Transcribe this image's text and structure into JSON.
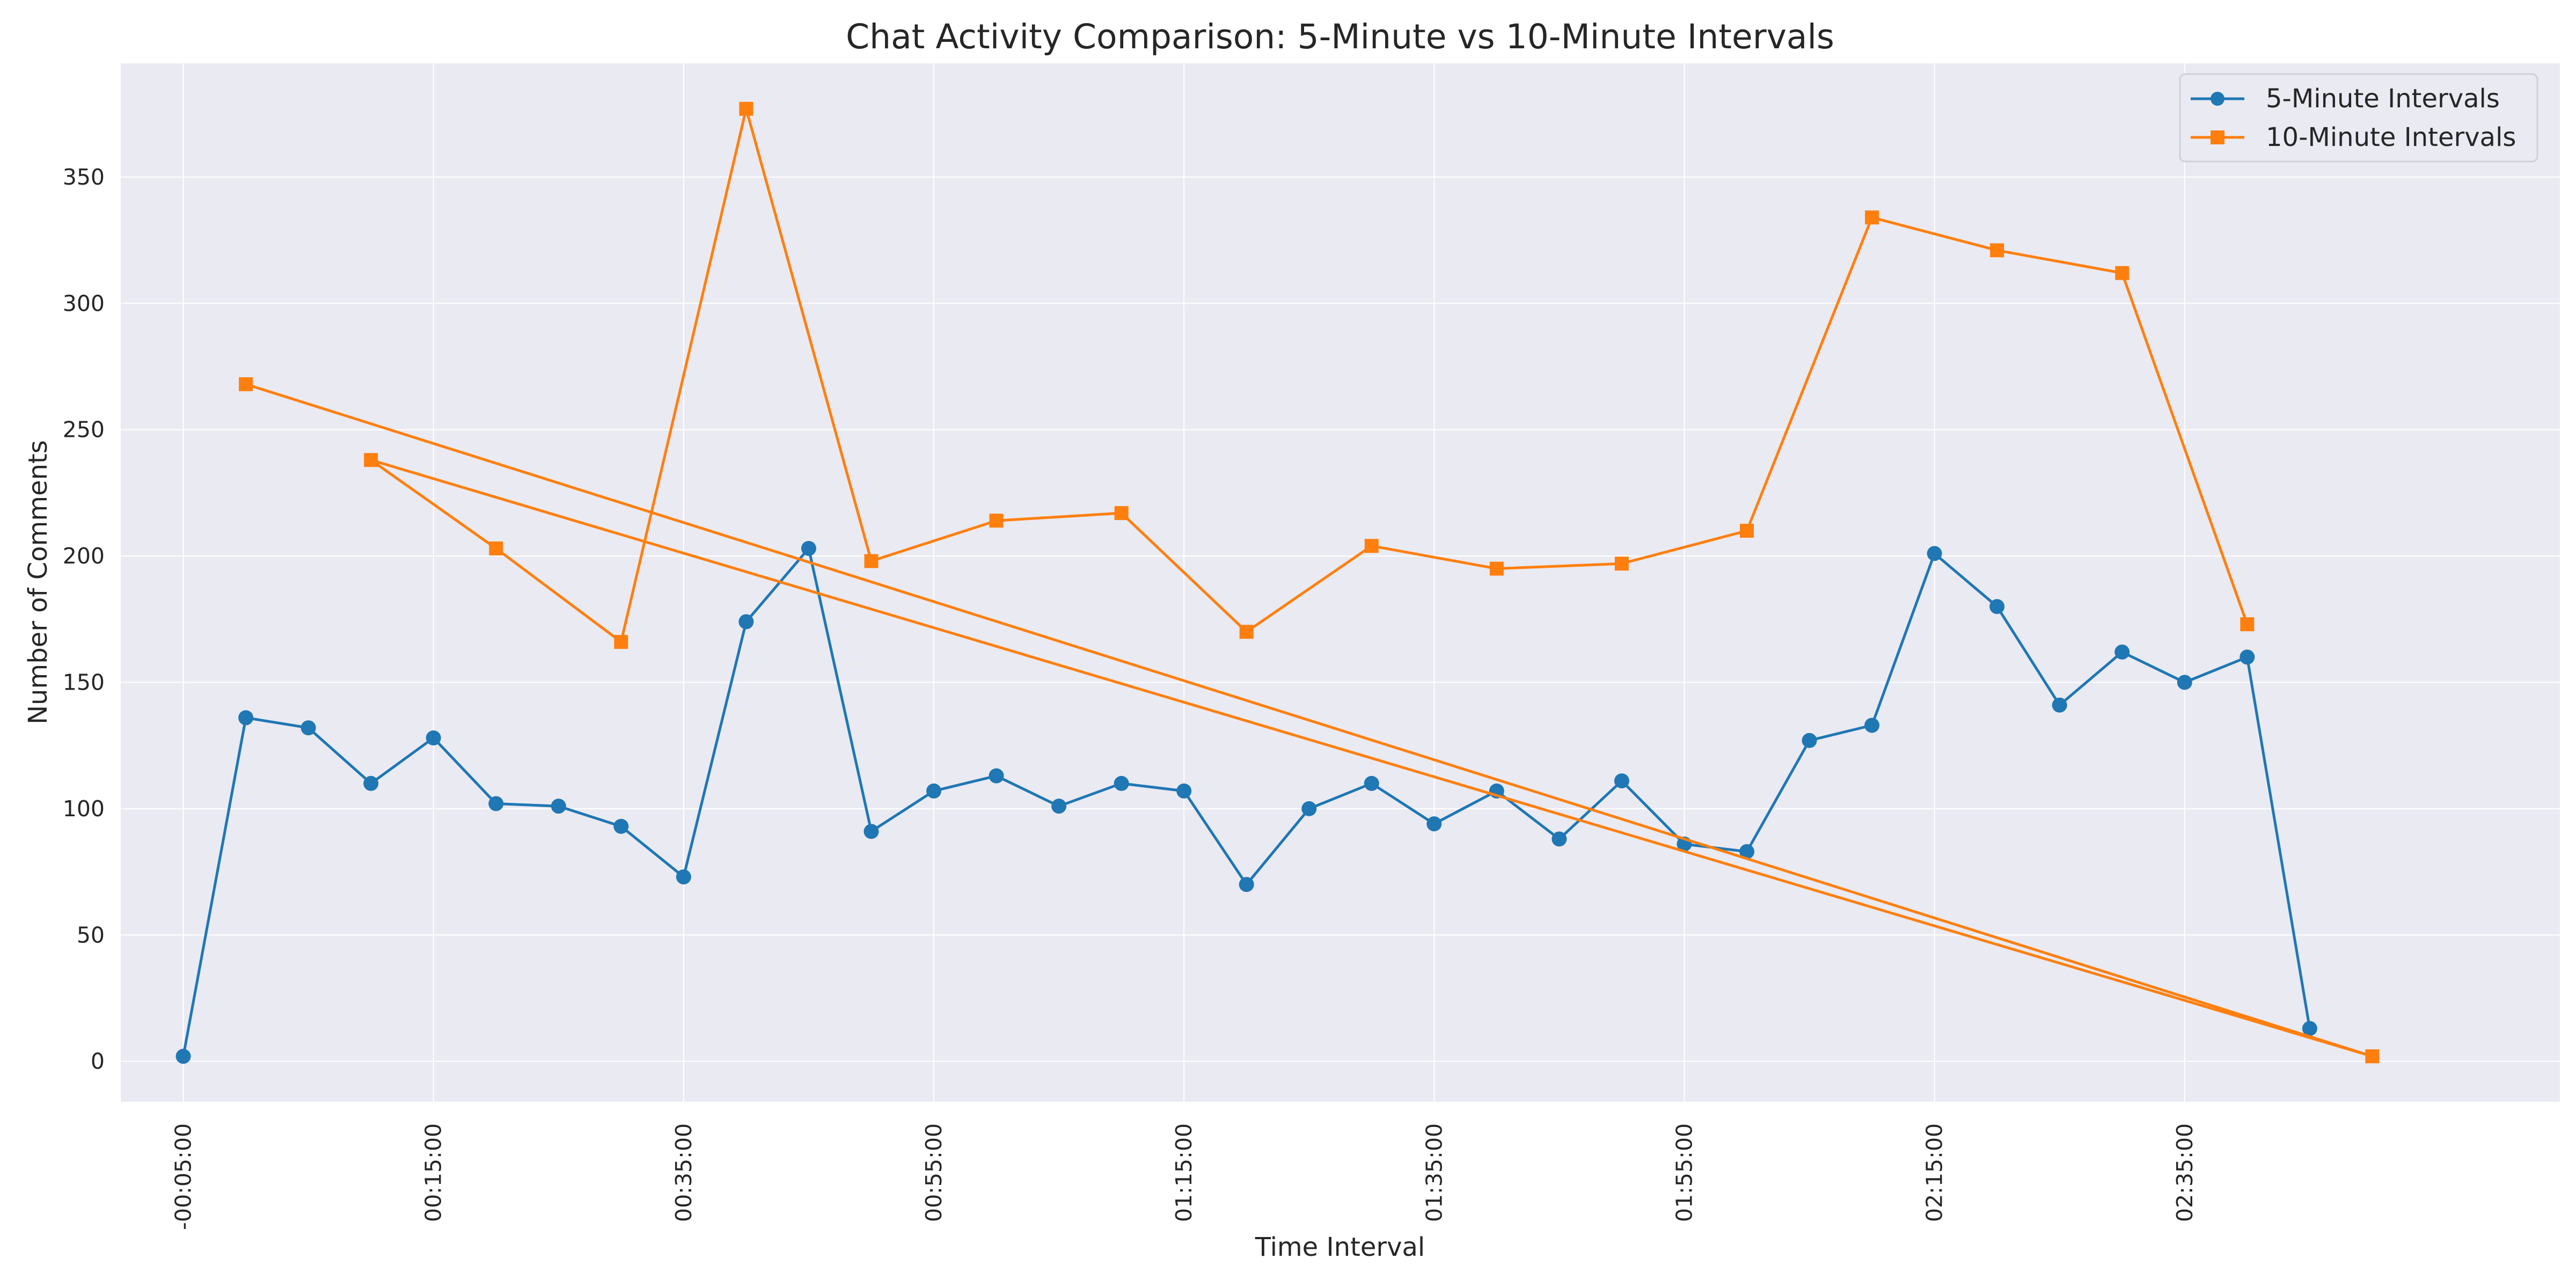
{
  "chart_data": {
    "type": "line",
    "title": "Chat Activity Comparison: 5-Minute vs 10-Minute Intervals",
    "xlabel": "Time Interval",
    "ylabel": "Number of Comments",
    "x_range": [
      "-00:10:00",
      "03:05:00"
    ],
    "ylim": [
      -16,
      395
    ],
    "y_ticks": [
      0,
      50,
      100,
      150,
      200,
      250,
      300,
      350
    ],
    "x_ticks": [
      "-00:05:00",
      "00:15:00",
      "00:35:00",
      "00:55:00",
      "01:15:00",
      "01:35:00",
      "01:55:00",
      "02:15:00",
      "02:35:00"
    ],
    "grid": true,
    "legend_position": "top-right",
    "background": "#EAEAF2",
    "series": [
      {
        "name": "5-Minute Intervals",
        "color": "#1f77b4",
        "marker": "circle",
        "x": [
          "-00:05:00",
          "00:00:00",
          "00:05:00",
          "00:10:00",
          "00:15:00",
          "00:20:00",
          "00:25:00",
          "00:30:00",
          "00:35:00",
          "00:40:00",
          "00:45:00",
          "00:50:00",
          "00:55:00",
          "01:00:00",
          "01:05:00",
          "01:10:00",
          "01:15:00",
          "01:20:00",
          "01:25:00",
          "01:30:00",
          "01:35:00",
          "01:40:00",
          "01:45:00",
          "01:50:00",
          "01:55:00",
          "02:00:00",
          "02:05:00",
          "02:10:00",
          "02:15:00",
          "02:20:00",
          "02:25:00",
          "02:30:00",
          "02:35:00",
          "02:40:00",
          "02:45:00"
        ],
        "values": [
          2,
          136,
          132,
          110,
          128,
          102,
          101,
          93,
          73,
          174,
          203,
          91,
          107,
          113,
          101,
          110,
          107,
          70,
          100,
          110,
          94,
          107,
          88,
          111,
          86,
          83,
          127,
          133,
          201,
          180,
          141,
          162,
          150,
          160,
          13
        ]
      },
      {
        "name": "10-Minute Intervals",
        "color": "#ff7f0e",
        "marker": "square",
        "x": [
          "00:00:00",
          "02:50:00",
          "00:10:00",
          "00:20:00",
          "00:30:00",
          "00:40:00",
          "00:50:00",
          "01:00:00",
          "01:10:00",
          "01:20:00",
          "01:30:00",
          "01:40:00",
          "01:50:00",
          "02:00:00",
          "02:10:00",
          "02:20:00",
          "02:30:00",
          "02:40:00"
        ],
        "values": [
          268,
          2,
          238,
          203,
          166,
          377,
          198,
          214,
          217,
          170,
          204,
          195,
          197,
          210,
          334,
          321,
          312,
          173
        ]
      }
    ]
  }
}
